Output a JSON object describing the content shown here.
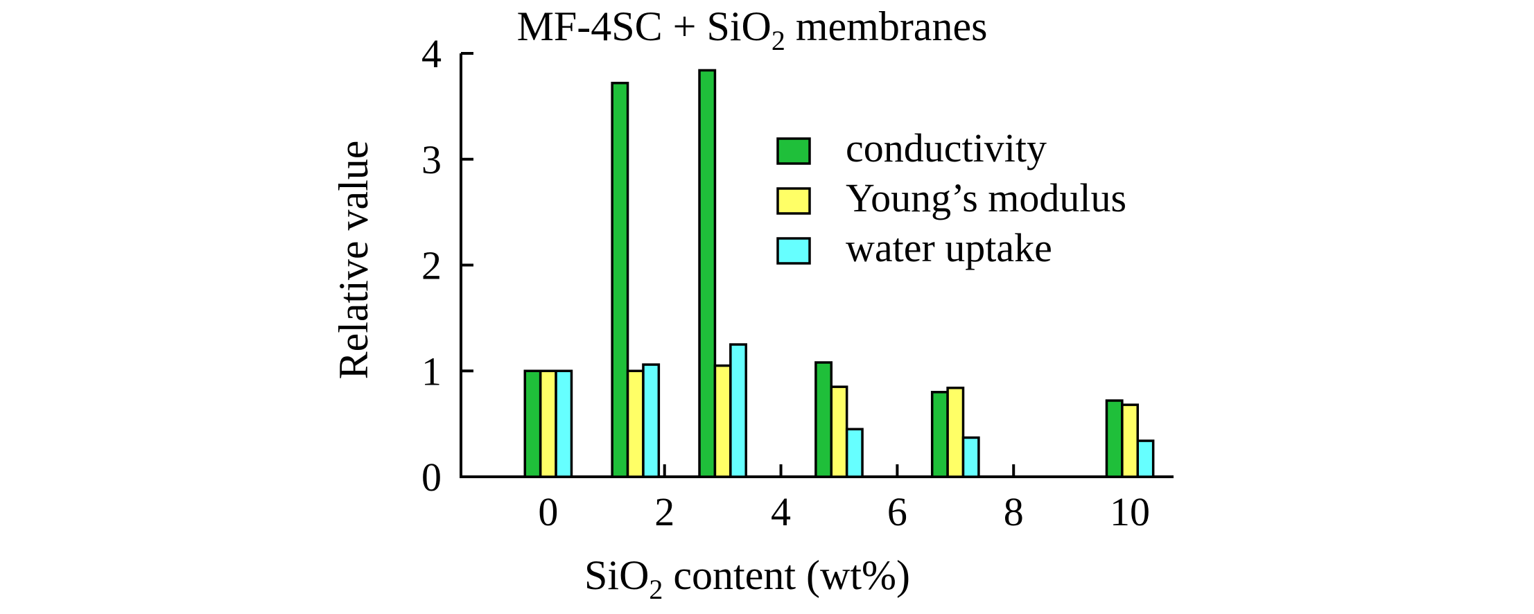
{
  "chart_data": {
    "type": "bar",
    "title": "MF-4SC + SiO",
    "title_sub": "2",
    "title_rest": " membranes",
    "xlabel": "SiO",
    "xlabel_sub": "2",
    "xlabel_rest": " content (wt%)",
    "ylabel": "Relative value",
    "ylim": [
      0,
      4
    ],
    "xlim": [
      -1.5,
      10.75
    ],
    "yticks": [
      "0",
      "1",
      "2",
      "3",
      "4"
    ],
    "xticks": [
      "0",
      "2",
      "4",
      "6",
      "8",
      "10"
    ],
    "categories": [
      "0",
      "1.5",
      "3",
      "5",
      "7",
      "10"
    ],
    "x": [
      0,
      1.5,
      3,
      5,
      7,
      10
    ],
    "legend_position": "top-right",
    "series": [
      {
        "name": "conductivity",
        "color": "#1fbf3a",
        "values": [
          1.0,
          3.72,
          3.84,
          1.08,
          0.8,
          0.72
        ]
      },
      {
        "name": "Young’s modulus",
        "color": "#ffff66",
        "values": [
          1.0,
          1.0,
          1.05,
          0.85,
          0.84,
          0.68
        ]
      },
      {
        "name": "water uptake",
        "color": "#66ffff",
        "values": [
          1.0,
          1.06,
          1.25,
          0.45,
          0.37,
          0.34
        ]
      }
    ]
  }
}
